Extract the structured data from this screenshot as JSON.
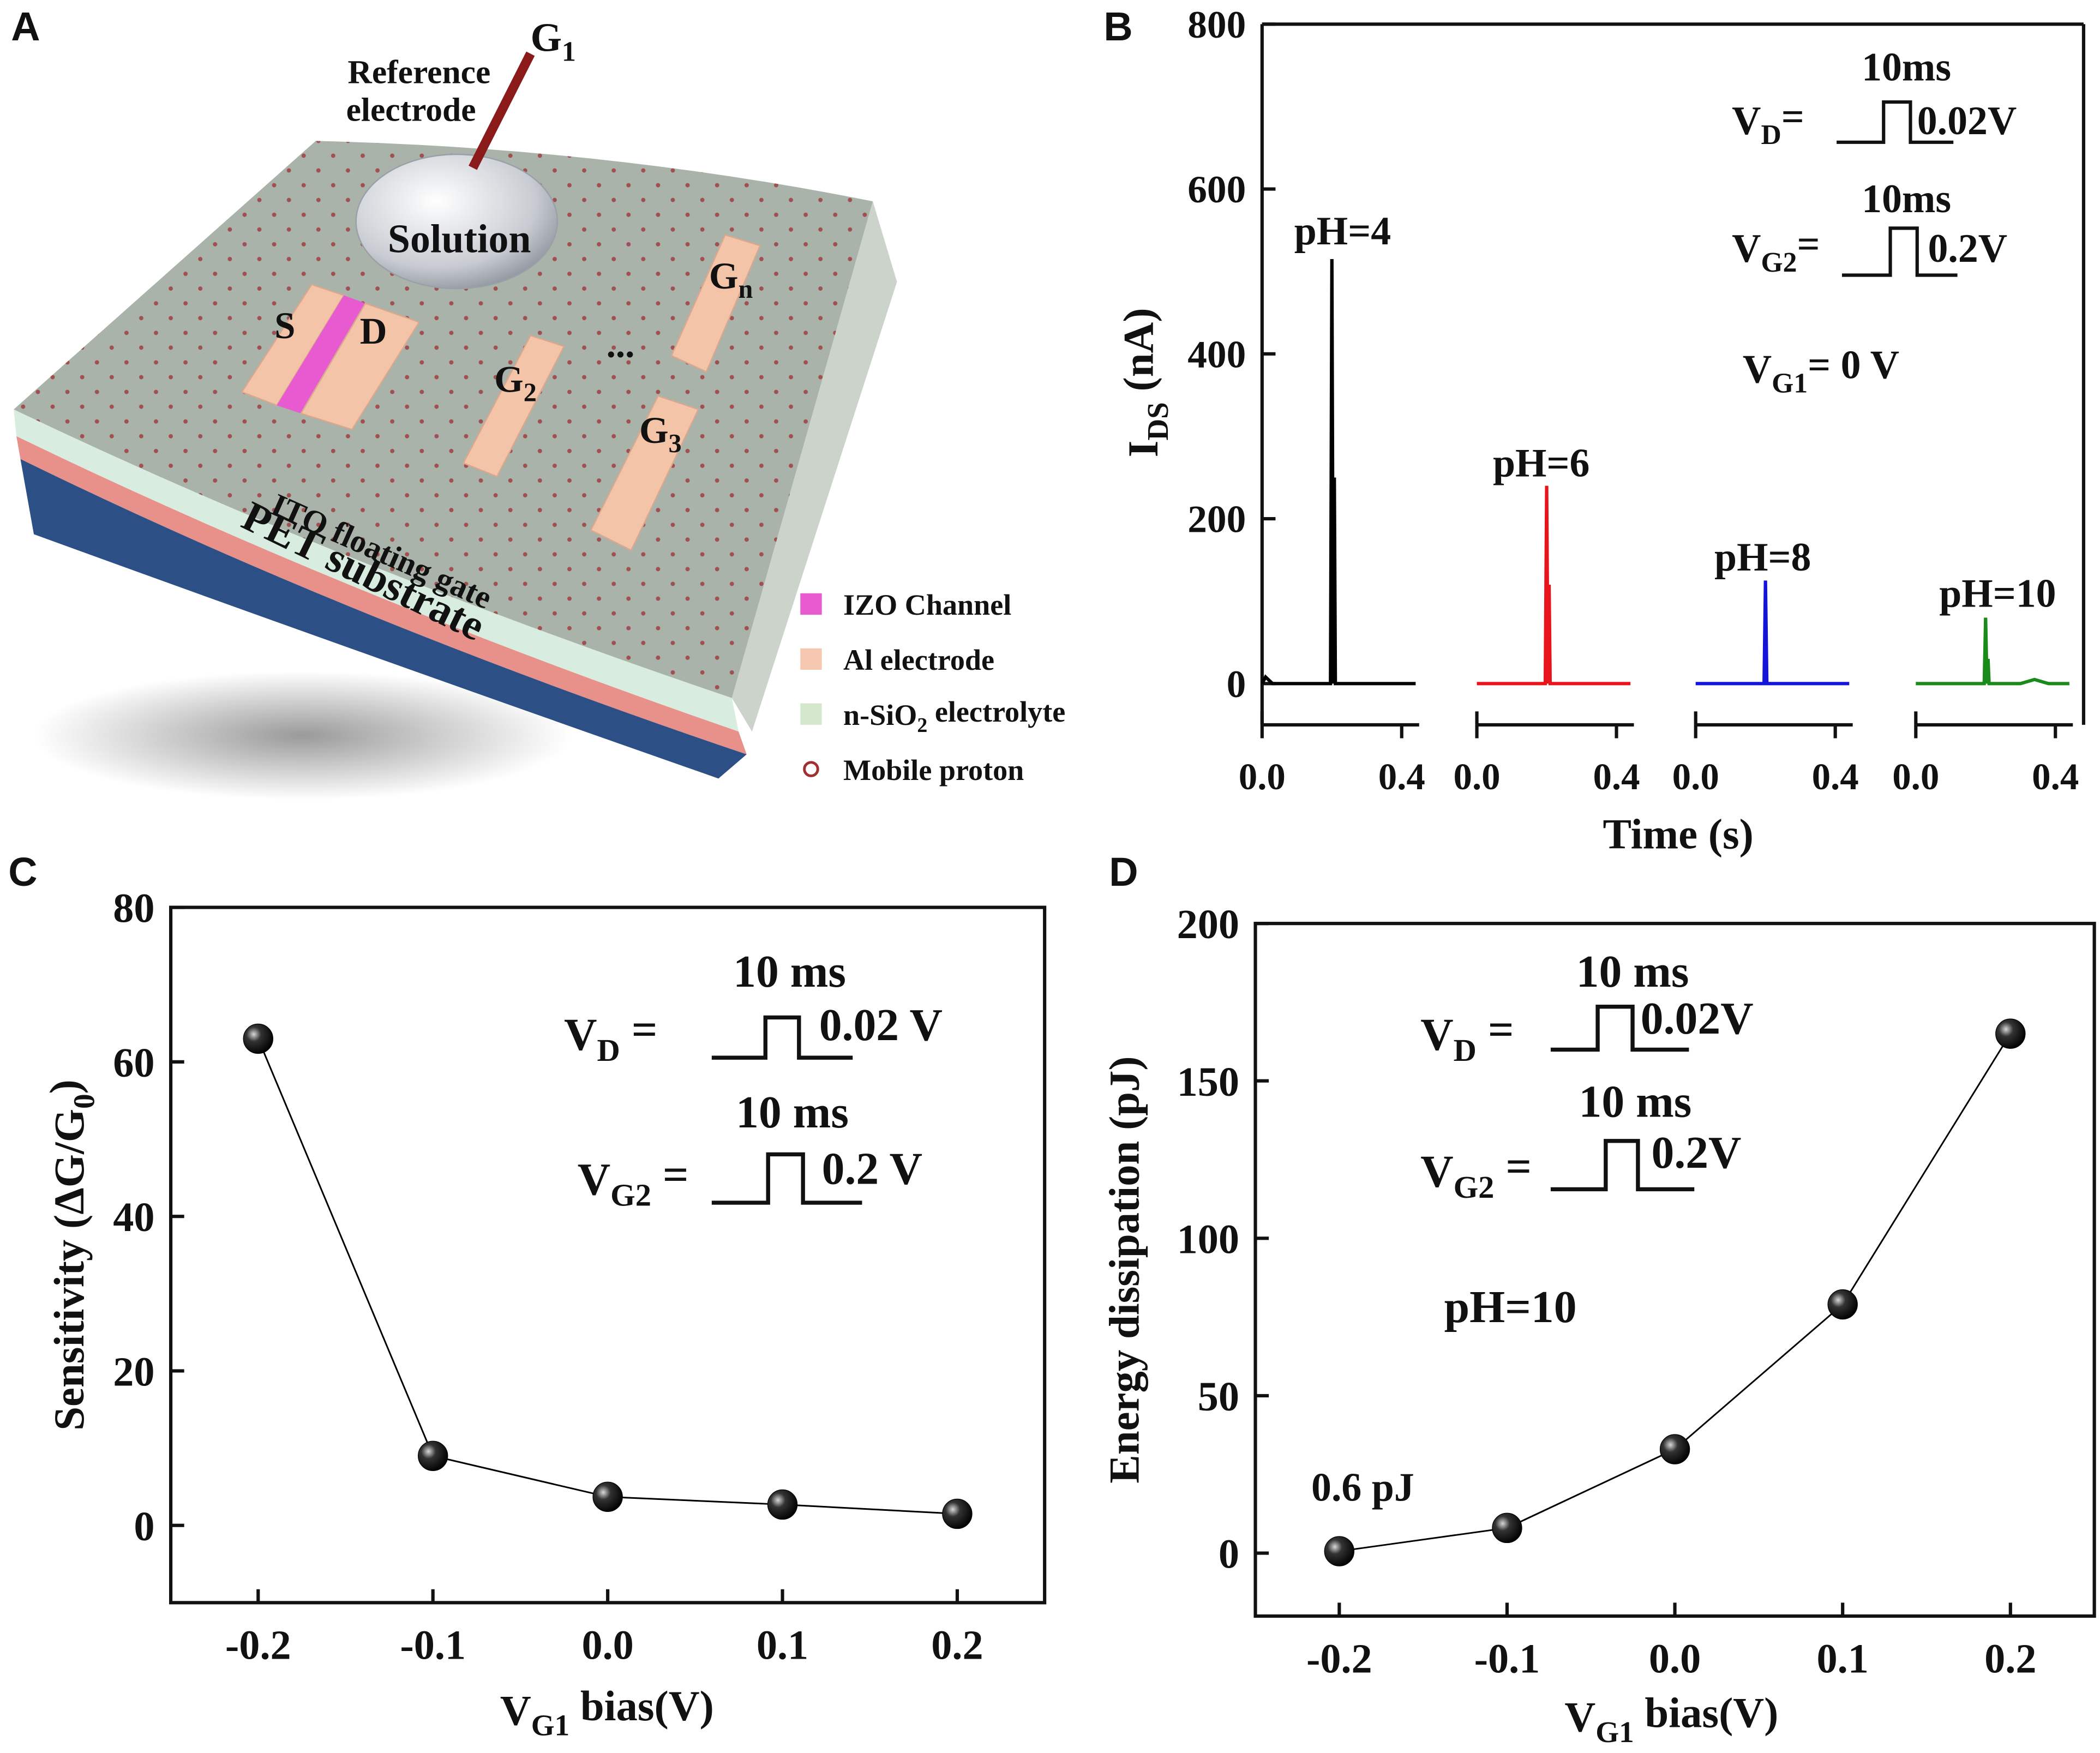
{
  "diagram": {
    "panel": "A",
    "reference_electrode": [
      "Reference",
      "electrode"
    ],
    "gate1": {
      "text": "G",
      "sub": "1"
    },
    "solution": "Solution",
    "source": "S",
    "drain": "D",
    "gate2": {
      "text": "G",
      "sub": "2"
    },
    "gate3": {
      "text": "G",
      "sub": "3"
    },
    "gaten": {
      "text": "G",
      "sub": "n"
    },
    "ellipsis": "...",
    "ito": "ITO floating gate",
    "pet": "PET substrate",
    "legend": [
      {
        "text": "IZO Channel",
        "color": "#e85ad0"
      },
      {
        "text": "Al electrode",
        "color": "#f6c8b0"
      },
      {
        "text": "n-SiO",
        "sub": "2",
        "after": " electrolyte",
        "color": "#d4e8cc"
      },
      {
        "text": "Mobile proton",
        "color": "#a03030"
      }
    ]
  },
  "chart_data": [
    {
      "panel": "B",
      "type": "line",
      "ylabel": {
        "text": "I",
        "sub": "DS",
        "after": " (nA)"
      },
      "xlabel": "Time (s)",
      "ylim": [
        -50,
        800
      ],
      "yticks": [
        0,
        200,
        400,
        600,
        800
      ],
      "xlim": [
        0,
        0.45
      ],
      "xticks": [
        {
          "value": 0,
          "label": "0.0"
        },
        {
          "value": 0.4,
          "label": "0.4"
        }
      ],
      "series": [
        {
          "name": "pH=4",
          "color": "#000000",
          "x": [
            0,
            0.01,
            0.03,
            0.196,
            0.2,
            0.204,
            0.207,
            0.21,
            0.215,
            0.44
          ],
          "values": [
            0,
            8,
            0,
            0,
            515,
            0,
            250,
            0,
            0,
            0
          ]
        },
        {
          "name": "pH=6",
          "color": "#e8141c",
          "x": [
            0,
            0.196,
            0.2,
            0.204,
            0.207,
            0.21,
            0.215,
            0.44
          ],
          "values": [
            0,
            0,
            240,
            0,
            120,
            0,
            0,
            0
          ]
        },
        {
          "name": "pH=8",
          "color": "#1414d8",
          "x": [
            0,
            0.196,
            0.2,
            0.204,
            0.44
          ],
          "values": [
            0,
            0,
            125,
            0,
            0
          ]
        },
        {
          "name": "pH=10",
          "color": "#1a8a1a",
          "x": [
            0,
            0.196,
            0.2,
            0.204,
            0.207,
            0.21,
            0.3,
            0.34,
            0.38,
            0.44
          ],
          "values": [
            0,
            0,
            80,
            0,
            30,
            0,
            0,
            5,
            0,
            0
          ]
        }
      ],
      "annotations": [
        {
          "text": "10ms"
        },
        {
          "text": "V",
          "sub": "D",
          "after": "= "
        },
        {
          "text": "0.02V"
        },
        {
          "text": "10ms"
        },
        {
          "text": "V",
          "sub": "G2",
          "after": "= "
        },
        {
          "text": "0.2V"
        },
        {
          "text": "V",
          "sub": "G1",
          "after": "= 0 V"
        }
      ]
    },
    {
      "panel": "C",
      "type": "line",
      "ylabel": {
        "text": "Sensitivity (ΔG/G",
        "sub": "0",
        "after": ")"
      },
      "xlabel": {
        "text": "V",
        "sub": "G1",
        "after": " bias(V)"
      },
      "x": [
        -0.2,
        -0.1,
        0,
        0.1,
        0.2
      ],
      "series": [
        {
          "color": "#000000",
          "values": [
            63,
            9,
            3.7,
            2.7,
            1.5
          ]
        }
      ],
      "xlim": [
        -0.25,
        0.25
      ],
      "xticks": [
        {
          "value": -0.2,
          "label": "-0.2"
        },
        {
          "value": -0.1,
          "label": "-0.1"
        },
        {
          "value": 0,
          "label": "0.0"
        },
        {
          "value": 0.1,
          "label": "0.1"
        },
        {
          "value": 0.2,
          "label": "0.2"
        }
      ],
      "ylim": [
        -10,
        80
      ],
      "yticks": [
        0,
        20,
        40,
        60,
        80
      ],
      "annotations": [
        {
          "text": "10 ms"
        },
        {
          "text": "V",
          "sub": "D",
          "after": " ="
        },
        {
          "text": "0.02 V"
        },
        {
          "text": "10 ms"
        },
        {
          "text": "V",
          "sub": "G2",
          "after": " ="
        },
        {
          "text": "0.2 V"
        }
      ]
    },
    {
      "panel": "D",
      "type": "line",
      "ylabel": "Energy dissipation (pJ)",
      "xlabel": {
        "text": "V",
        "sub": "G1",
        "after": " bias(V)"
      },
      "x": [
        -0.2,
        -0.1,
        0,
        0.1,
        0.2
      ],
      "series": [
        {
          "color": "#000000",
          "values": [
            0.6,
            8,
            33,
            79,
            165
          ]
        }
      ],
      "xlim": [
        -0.25,
        0.25
      ],
      "xticks": [
        {
          "value": -0.2,
          "label": "-0.2"
        },
        {
          "value": -0.1,
          "label": "-0.1"
        },
        {
          "value": 0,
          "label": "0.0"
        },
        {
          "value": 0.1,
          "label": "0.1"
        },
        {
          "value": 0.2,
          "label": "0.2"
        }
      ],
      "ylim": [
        -20,
        200
      ],
      "yticks": [
        0,
        50,
        100,
        150,
        200
      ],
      "annotations": [
        {
          "text": "10 ms"
        },
        {
          "text": "V",
          "sub": "D",
          "after": " ="
        },
        {
          "text": "0.02V"
        },
        {
          "text": "10 ms"
        },
        {
          "text": "V",
          "sub": "G2",
          "after": " ="
        },
        {
          "text": "0.2V"
        },
        {
          "text": "pH=10"
        },
        {
          "text": "0.6 pJ"
        }
      ]
    }
  ]
}
